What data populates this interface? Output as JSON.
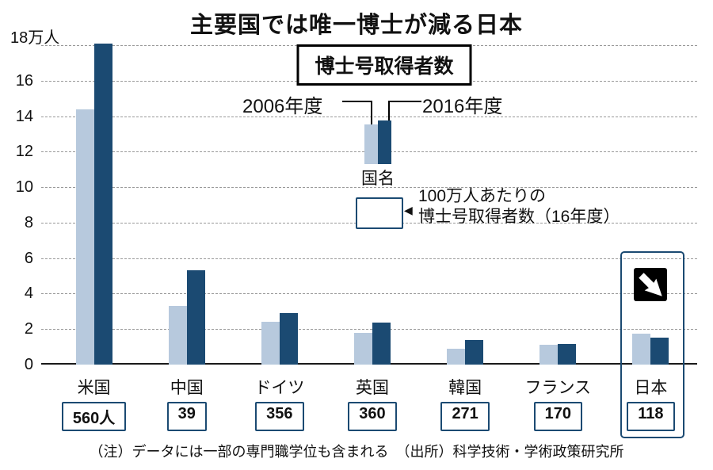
{
  "title": "主要国では唯一博士が減る日本",
  "legend": {
    "box_label": "博士号取得者数",
    "series_2006": "2006年度",
    "series_2016": "2016年度",
    "country_label": "国名",
    "pointer": "◀",
    "per_million_note_line1": "100万人あたりの",
    "per_million_note_line2": "博士号取得者数（16年度）"
  },
  "y_axis": {
    "top_label": "18万人",
    "ticks": [
      18,
      16,
      14,
      12,
      10,
      8,
      6,
      4,
      2,
      0
    ]
  },
  "chart_data": {
    "type": "bar",
    "title": "主要国では唯一博士が減る日本",
    "unit": "万人",
    "categories": [
      "米国",
      "中国",
      "ドイツ",
      "英国",
      "韓国",
      "フランス",
      "日本"
    ],
    "series": [
      {
        "name": "2006年度",
        "values": [
          14.4,
          3.3,
          2.4,
          1.8,
          0.9,
          1.1,
          1.75
        ]
      },
      {
        "name": "2016年度",
        "values": [
          18.1,
          5.3,
          2.9,
          2.35,
          1.4,
          1.15,
          1.5
        ]
      }
    ],
    "per_million_2016": [
      "560人",
      "39",
      "356",
      "360",
      "271",
      "170",
      "118"
    ],
    "ylim": [
      0,
      18
    ],
    "grid": "dashed-horizontal",
    "legend_position": "top-center",
    "colors": {
      "y2006": "#b7c9dd",
      "y2016": "#1b4a72"
    }
  },
  "footnote": "（注）データには一部の専門職学位も含まれる　（出所）科学技術・学術政策研究所"
}
